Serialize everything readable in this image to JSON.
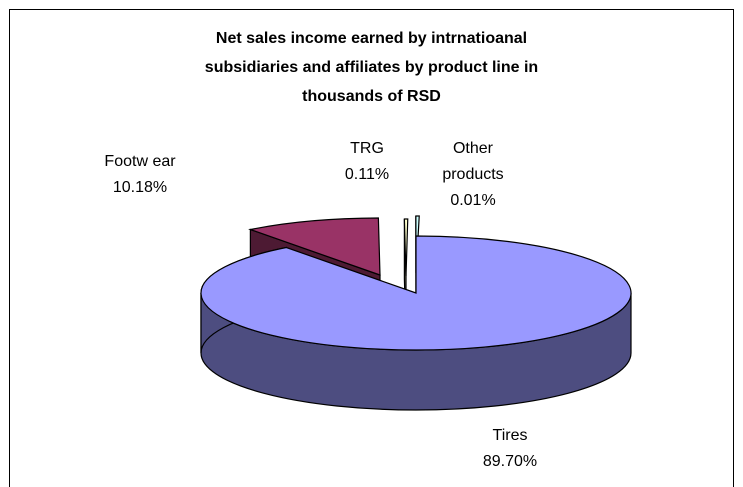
{
  "chart_data": {
    "type": "pie",
    "title": "Net sales income earned by intrnatioanal subsidiaries and affiliates by product line in thousands of RSD",
    "title_lines": [
      "Net sales income earned by intrnatioanal",
      "subsidiaries and affiliates by product line in",
      "thousands of RSD"
    ],
    "slices": [
      {
        "name": "Tires",
        "value": 89.7,
        "label": "89.70%",
        "color": "#9999ff",
        "side_color": "#4d4d80"
      },
      {
        "name": "Footw ear",
        "value": 10.18,
        "label": "10.18%",
        "color": "#993366",
        "side_color": "#4d1a33"
      },
      {
        "name": "TRG",
        "value": 0.11,
        "label": "0.11%",
        "color": "#ffffcc",
        "side_color": "#808066"
      },
      {
        "name": "Other products",
        "name_lines": [
          "Other",
          "products"
        ],
        "value": 0.01,
        "label": "0.01%",
        "color": "#ccffff",
        "side_color": "#668080"
      }
    ],
    "style": "3d-exploded"
  }
}
